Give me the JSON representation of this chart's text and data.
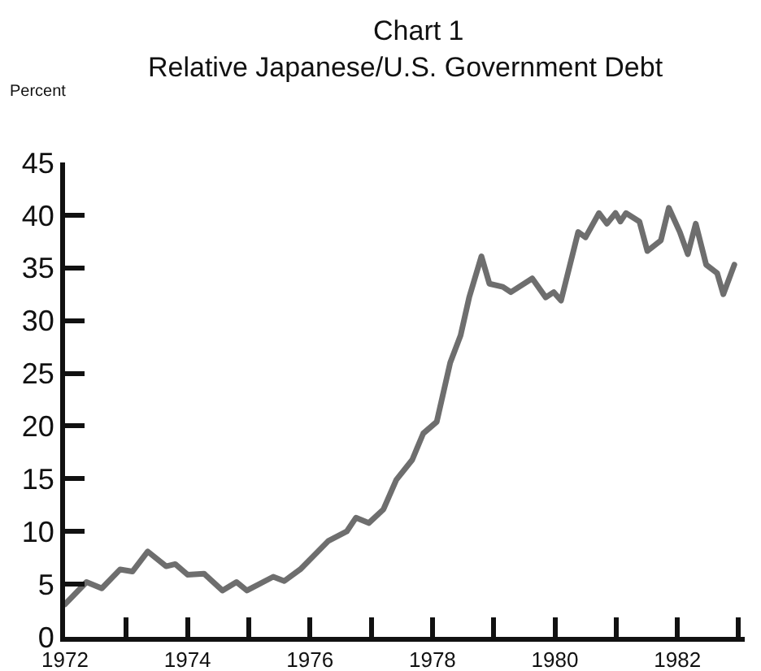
{
  "chart_data": {
    "type": "line",
    "title": "Chart 1",
    "subtitle": "Relative Japanese/U.S. Government Debt",
    "ylabel": "Percent",
    "x": [
      1972.0,
      1972.35,
      1972.6,
      1972.9,
      1973.1,
      1973.35,
      1973.65,
      1973.8,
      1974.0,
      1974.27,
      1974.57,
      1974.8,
      1974.97,
      1975.4,
      1975.58,
      1975.84,
      1976.3,
      1976.6,
      1976.75,
      1976.96,
      1977.2,
      1977.41,
      1977.67,
      1977.85,
      1978.07,
      1978.29,
      1978.46,
      1978.6,
      1978.8,
      1978.93,
      1979.15,
      1979.28,
      1979.63,
      1979.85,
      1979.98,
      1980.1,
      1980.38,
      1980.5,
      1980.72,
      1980.85,
      1980.99,
      1981.07,
      1981.16,
      1981.38,
      1981.51,
      1981.73,
      1981.86,
      1982.04,
      1982.17,
      1982.3,
      1982.47,
      1982.65,
      1982.75,
      1982.93
    ],
    "series": [
      {
        "color": "#6e6e6e",
        "values": [
          3.1,
          5.2,
          4.6,
          6.4,
          6.2,
          8.1,
          6.7,
          6.9,
          5.9,
          6.0,
          4.4,
          5.2,
          4.4,
          5.7,
          5.3,
          6.4,
          9.1,
          10.0,
          11.3,
          10.8,
          12.1,
          14.9,
          16.8,
          19.3,
          20.4,
          26.0,
          28.6,
          32.2,
          36.1,
          33.5,
          33.2,
          32.7,
          34.0,
          32.2,
          32.7,
          31.9,
          38.4,
          37.9,
          40.2,
          39.2,
          40.2,
          39.4,
          40.2,
          39.4,
          36.6,
          37.6,
          40.7,
          38.4,
          36.3,
          39.2,
          35.3,
          34.5,
          32.5,
          35.3
        ]
      }
    ],
    "xlim": [
      1972,
      1983.1
    ],
    "xticks": [
      1972,
      {
        "value": 1973,
        "label": null
      },
      1974,
      {
        "value": 1975,
        "label": null
      },
      1976,
      {
        "value": 1977,
        "label": null
      },
      1978,
      {
        "value": 1979,
        "label": null
      },
      1980,
      {
        "value": 1981,
        "label": null
      },
      1982,
      {
        "value": 1983,
        "label": null
      }
    ],
    "ylim": [
      0,
      45
    ],
    "yticks": [
      0,
      5,
      10,
      15,
      20,
      25,
      30,
      35,
      40,
      45
    ],
    "grid": false,
    "marker": "none",
    "line_style": "solid"
  }
}
